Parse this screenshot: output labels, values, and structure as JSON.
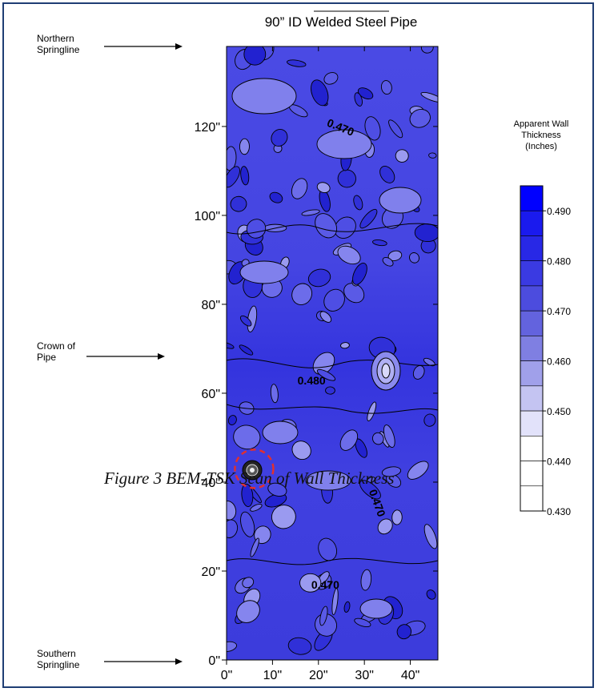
{
  "chart_data": {
    "type": "heatmap",
    "title": "90” ID Welded Steel Pipe",
    "x_ticks": [
      "0\"",
      "10\"",
      "20\"",
      "30\"",
      "40\""
    ],
    "x_tick_values": [
      0,
      10,
      20,
      30,
      40
    ],
    "xlim": [
      0,
      46
    ],
    "y_ticks": [
      "0\"",
      "20\"",
      "40\"",
      "60\"",
      "80\"",
      "100\"",
      "120\""
    ],
    "y_tick_values": [
      0,
      20,
      40,
      60,
      80,
      100,
      120
    ],
    "ylim": [
      0,
      138
    ],
    "contour_labels": [
      {
        "text": "0.470",
        "x": 24.5,
        "y": 119
      },
      {
        "text": "0.480",
        "x": 18.5,
        "y": 62
      },
      {
        "text": "0.470",
        "x": 32.0,
        "y": 35
      },
      {
        "text": "0.470",
        "x": 21.5,
        "y": 16
      }
    ],
    "colorbar": {
      "title": [
        "Apparent Wall",
        "Thickness",
        "(Inches)"
      ],
      "levels": [
        "0.490",
        "0.480",
        "0.470",
        "0.460",
        "0.450",
        "0.440",
        "0.430"
      ],
      "level_values": [
        0.49,
        0.48,
        0.47,
        0.46,
        0.45,
        0.44,
        0.43
      ],
      "range": [
        0.43,
        0.495
      ],
      "colors_high_to_low": [
        "#0000ff",
        "#1a1aee",
        "#2828e6",
        "#3a3ae2",
        "#4c4cde",
        "#6363de",
        "#7f7fe2",
        "#a0a0ea",
        "#c4c4f2",
        "#e2e2fa",
        "#ffffff"
      ]
    },
    "annotations": [
      {
        "text": [
          "Northern",
          "Springline"
        ]
      },
      {
        "text": [
          "Crown of",
          "Pipe"
        ]
      },
      {
        "text": [
          "Southern",
          "Springline"
        ]
      }
    ],
    "highlight": {
      "type": "dashed-circle",
      "color": "#e03030",
      "x": 6,
      "y": 43
    }
  },
  "caption": "Figure 3 BEM-TSK Scan of Wall Thickness",
  "colors": {
    "frame": "#1f3e74",
    "map_base": "#3c3ce0",
    "map_light": "#7b7bec",
    "map_dark": "#2a2ad8"
  }
}
